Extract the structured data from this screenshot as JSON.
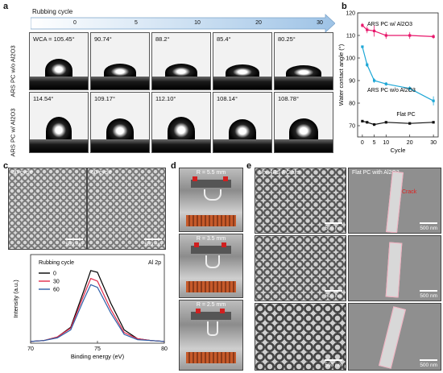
{
  "panels": {
    "a": {
      "label": "a",
      "arrow_label": "Rubbing cycle",
      "cycles": [
        "0",
        "5",
        "10",
        "20",
        "30"
      ],
      "rows": [
        {
          "label": "ARS PC w/o Al2O3",
          "angles": [
            "WCA = 105.45°",
            "90.74°",
            "88.2°",
            "85.4°",
            "80.25°"
          ]
        },
        {
          "label": "ARS PC w/ Al2O3",
          "angles": [
            "114.54°",
            "109.17°",
            "112.10°",
            "108.14°",
            "108.78°"
          ]
        }
      ]
    },
    "b": {
      "label": "b"
    },
    "c": {
      "label": "c",
      "sem": [
        {
          "label": "30 cycle",
          "scale": "500 nm"
        },
        {
          "label": "60 cycle",
          "scale": "500 nm"
        }
      ]
    },
    "d": {
      "label": "d",
      "photos": [
        {
          "label": "R = 5.5 mm"
        },
        {
          "label": "R = 3.5 mm"
        },
        {
          "label": "R = 2.5 mm"
        }
      ]
    },
    "e": {
      "label": "e",
      "col1_title": "Uni-ARS PC film",
      "col2_title": "Flat PC with Al2O3",
      "crack_label": "Crack",
      "scale": "500 nm"
    }
  },
  "chart_data": [
    {
      "type": "line",
      "panel": "b",
      "xlabel": "Cycle",
      "ylabel": "Water contact angle (°)",
      "xlim": [
        -2,
        32
      ],
      "ylim": [
        65,
        120
      ],
      "xticks": [
        0,
        5,
        10,
        20,
        30
      ],
      "yticks": [
        70,
        80,
        90,
        100,
        110,
        120
      ],
      "x": [
        0,
        2,
        5,
        10,
        20,
        30
      ],
      "series": [
        {
          "name": "ARS PC w/ Al2O3",
          "color": "#e8176b",
          "values": [
            114.5,
            112.5,
            112,
            110,
            110,
            109.5
          ],
          "errors": [
            1,
            1.5,
            2.5,
            1.5,
            1.5,
            1
          ]
        },
        {
          "name": "ARS PC w/o Al2O3",
          "color": "#1ea7d6",
          "values": [
            105,
            97,
            90,
            88.5,
            86.5,
            81
          ],
          "errors": [
            0.5,
            1,
            1,
            0.8,
            1,
            2
          ]
        },
        {
          "name": "Flat PC",
          "color": "#111111",
          "values": [
            72,
            71.5,
            70.5,
            71.5,
            71,
            71.5
          ],
          "errors": [
            0.5,
            0.5,
            0.5,
            0.5,
            0.5,
            0.5
          ]
        }
      ]
    },
    {
      "type": "line",
      "panel": "c",
      "title": "Al 2p",
      "legend_title": "Rubbing cycle",
      "xlabel": "Binding energy (eV)",
      "ylabel": "Intensity (a.u.)",
      "xlim": [
        70,
        80
      ],
      "ylim": [
        0,
        1
      ],
      "xticks": [
        70,
        75,
        80
      ],
      "x": [
        70,
        71,
        72,
        73,
        74,
        74.5,
        75,
        76,
        77,
        78,
        79,
        80
      ],
      "series": [
        {
          "name": "0",
          "color": "#000000",
          "values": [
            0.02,
            0.03,
            0.07,
            0.18,
            0.6,
            0.82,
            0.8,
            0.45,
            0.15,
            0.05,
            0.03,
            0.02
          ]
        },
        {
          "name": "30",
          "color": "#e02a4a",
          "values": [
            0.02,
            0.03,
            0.07,
            0.17,
            0.55,
            0.73,
            0.7,
            0.38,
            0.12,
            0.05,
            0.03,
            0.02
          ]
        },
        {
          "name": "60",
          "color": "#2e5fa8",
          "values": [
            0.02,
            0.03,
            0.06,
            0.15,
            0.5,
            0.66,
            0.63,
            0.34,
            0.1,
            0.04,
            0.03,
            0.02
          ]
        }
      ]
    }
  ]
}
